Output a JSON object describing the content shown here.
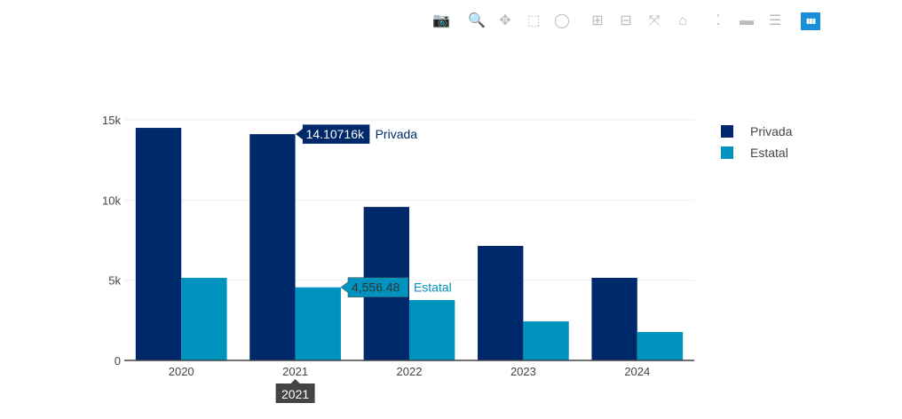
{
  "toolbar": [
    {
      "name": "camera-icon",
      "glyph": "📷"
    },
    {
      "name": "zoom-icon",
      "glyph": "🔍",
      "active": true
    },
    {
      "name": "pan-icon",
      "glyph": "✥"
    },
    {
      "name": "box-select-icon",
      "glyph": "⬚"
    },
    {
      "name": "lasso-select-icon",
      "glyph": "◯"
    },
    {
      "name": "zoom-in-icon",
      "glyph": "⊞"
    },
    {
      "name": "zoom-out-icon",
      "glyph": "⊟"
    },
    {
      "name": "autoscale-icon",
      "glyph": "⤧"
    },
    {
      "name": "reset-axes-icon",
      "glyph": "⌂"
    },
    {
      "name": "spike-lines-icon",
      "glyph": "⁚"
    },
    {
      "name": "hover-closest-icon",
      "glyph": "▬"
    },
    {
      "name": "hover-compare-icon",
      "glyph": "☰"
    },
    {
      "name": "plotly-logo-icon",
      "glyph": "▮▮▮"
    }
  ],
  "chart_data": {
    "type": "bar",
    "categories": [
      "2020",
      "2021",
      "2022",
      "2023",
      "2024"
    ],
    "series": [
      {
        "name": "Privada",
        "color": "#00296b",
        "values": [
          14500,
          14107.16,
          9570,
          7140,
          5150
        ]
      },
      {
        "name": "Estatal",
        "color": "#0093c0",
        "values": [
          5150,
          4556.48,
          3760,
          2430,
          1770
        ]
      }
    ],
    "ylim": [
      0,
      15000
    ],
    "yticks": [
      {
        "v": 0,
        "label": "0"
      },
      {
        "v": 5000,
        "label": "5k"
      },
      {
        "v": 10000,
        "label": "10k"
      },
      {
        "v": 15000,
        "label": "15k"
      }
    ],
    "grid": true,
    "legend_position": "top-right",
    "hover": {
      "category_label": "2021",
      "labels": [
        {
          "series": "Privada",
          "value_text": "14.10716k"
        },
        {
          "series": "Estatal",
          "value_text": "4,556.48"
        }
      ]
    }
  }
}
